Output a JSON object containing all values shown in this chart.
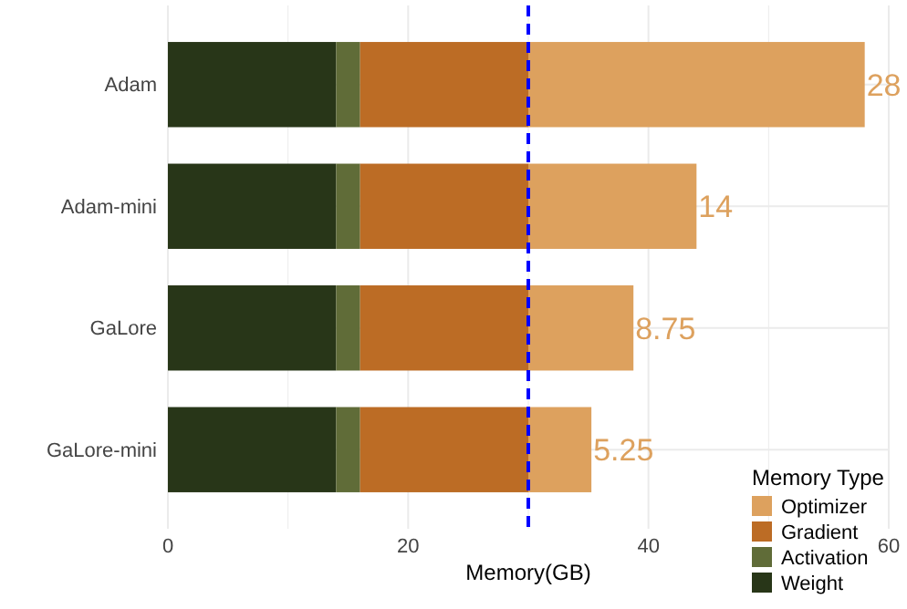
{
  "chart_data": {
    "type": "bar",
    "orientation": "horizontal",
    "stacked": true,
    "xlabel": "Memory(GB)",
    "legend_title": "Memory Type",
    "legend": "bottom right",
    "grid": true,
    "categories": [
      "Adam",
      "Adam-mini",
      "GaLore",
      "GaLore-mini"
    ],
    "series": [
      {
        "name": "Weight",
        "color": "#283618",
        "values": [
          14,
          14,
          14,
          14
        ]
      },
      {
        "name": "Activation",
        "color": "#606c38",
        "values": [
          2,
          2,
          2,
          2
        ]
      },
      {
        "name": "Gradient",
        "color": "#bc6c25",
        "values": [
          14,
          14,
          14,
          14
        ]
      },
      {
        "name": "Optimizer",
        "color": "#dda15e",
        "values": [
          28,
          14,
          8.75,
          5.25
        ],
        "value_labels": [
          "28",
          "14",
          "8.75",
          "5.25"
        ]
      }
    ],
    "xlim": [
      0,
      60
    ],
    "xticks": [
      0,
      {
        "value": 10,
        "label": null
      },
      20,
      {
        "value": 30,
        "label": null
      },
      40,
      {
        "value": 50,
        "label": null
      },
      60
    ],
    "ref_lines": [
      {
        "axis": "x",
        "value": 30,
        "color": "#0000ff",
        "line_style": "dashed"
      }
    ]
  }
}
